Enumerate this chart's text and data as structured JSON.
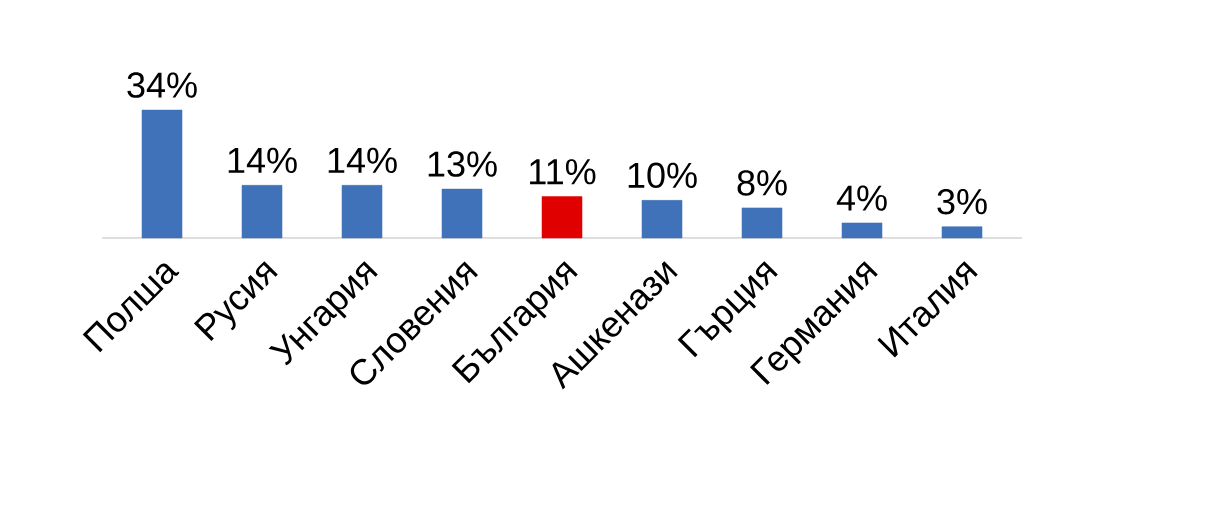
{
  "chart_data": {
    "type": "bar",
    "categories": [
      "Полша",
      "Русия",
      "Унгария",
      "Словения",
      "България",
      "Ашкенази",
      "Гърция",
      "Германия",
      "Италия"
    ],
    "values": [
      34,
      14,
      14,
      13,
      11,
      10,
      8,
      4,
      3
    ],
    "colors": [
      "#3f72b8",
      "#3f72b8",
      "#3f72b8",
      "#3f72b8",
      "#e00000",
      "#3f72b8",
      "#3f72b8",
      "#3f72b8",
      "#3f72b8"
    ],
    "value_labels": [
      "34%",
      "14%",
      "14%",
      "13%",
      "11%",
      "10%",
      "8%",
      "4%",
      "3%"
    ]
  }
}
